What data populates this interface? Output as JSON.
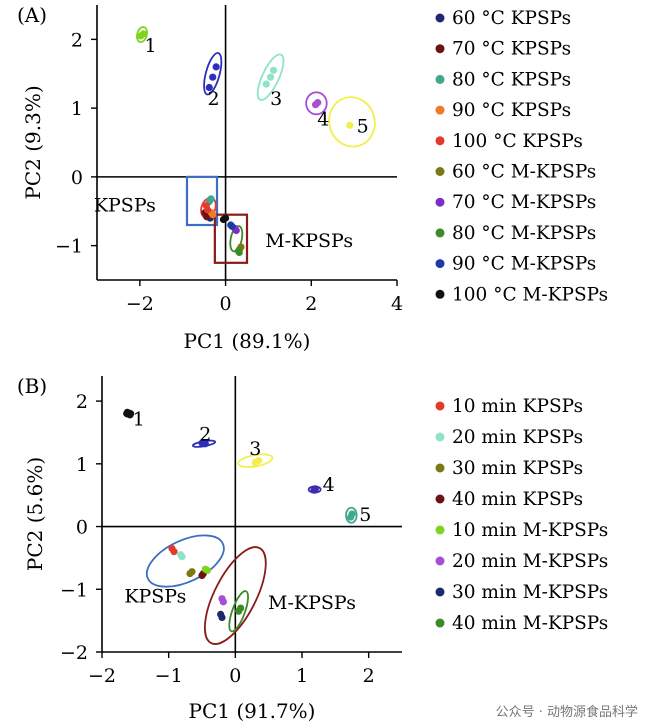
{
  "watermark": "公众号 · 动物源食品科学",
  "chart_data": [
    {
      "type": "scatter",
      "panel_label": "(A)",
      "xlabel": "PC1 (89.1%)",
      "ylabel": "PC2 (9.3%)",
      "xlim": [
        -3,
        4
      ],
      "ylim": [
        -1.5,
        2.5
      ],
      "xticks": [
        "−2",
        "0",
        "2",
        "4"
      ],
      "yticks": [
        "−1",
        "0",
        "1",
        "2"
      ],
      "xtick_values": [
        -2,
        0,
        2,
        4
      ],
      "ytick_values": [
        -1,
        0,
        1,
        2
      ],
      "grid": false,
      "legend_position": "right",
      "series": [
        {
          "name": "60 °C KPSPs",
          "color": "#1f2a6e",
          "points": [
            [
              -0.36,
              -0.6
            ],
            [
              -0.42,
              -0.55
            ]
          ]
        },
        {
          "name": "70 °C KPSPs",
          "color": "#6b1212",
          "points": [
            [
              -0.48,
              -0.52
            ],
            [
              -0.44,
              -0.58
            ]
          ]
        },
        {
          "name": "80 °C KPSPs",
          "color": "#3fa88f",
          "points": [
            [
              -0.38,
              -0.36
            ],
            [
              -0.34,
              -0.32
            ]
          ]
        },
        {
          "name": "90 °C KPSPs",
          "color": "#f07a2a",
          "points": [
            [
              -0.33,
              -0.52
            ],
            [
              -0.3,
              -0.55
            ]
          ]
        },
        {
          "name": "100 °C KPSPs",
          "color": "#e33a2c",
          "points": [
            [
              -0.42,
              -0.48
            ],
            [
              -0.45,
              -0.42
            ]
          ]
        },
        {
          "name": "60 °C M-KPSPs",
          "color": "#7a7a12",
          "points": [
            [
              0.36,
              -1.02
            ],
            [
              0.33,
              -1.05
            ]
          ]
        },
        {
          "name": "70 °C M-KPSPs",
          "color": "#7b2fc7",
          "points": [
            [
              0.25,
              -0.78
            ],
            [
              0.22,
              -0.75
            ]
          ]
        },
        {
          "name": "80 °C M-KPSPs",
          "color": "#3d8a2a",
          "points": [
            [
              0.32,
              -1.1
            ],
            [
              0.3,
              -1.08
            ]
          ]
        },
        {
          "name": "90 °C M-KPSPs",
          "color": "#1f3aa8",
          "points": [
            [
              0.15,
              -0.72
            ],
            [
              0.12,
              -0.7
            ]
          ]
        },
        {
          "name": "100 °C M-KPSPs",
          "color": "#111111",
          "points": [
            [
              -0.05,
              -0.62
            ],
            [
              0.0,
              -0.6
            ]
          ]
        },
        {
          "name": "",
          "color": "#7ed321",
          "points": [
            [
              -1.92,
              2.08
            ],
            [
              -1.98,
              2.05
            ]
          ]
        },
        {
          "name": "",
          "color": "#2d2fb8",
          "points": [
            [
              -0.3,
              1.45
            ],
            [
              -0.22,
              1.6
            ],
            [
              -0.38,
              1.3
            ]
          ]
        },
        {
          "name": "",
          "color": "#8fe3c8",
          "points": [
            [
              1.05,
              1.45
            ],
            [
              0.95,
              1.35
            ],
            [
              1.12,
              1.55
            ]
          ]
        },
        {
          "name": "",
          "color": "#a64fd4",
          "points": [
            [
              2.15,
              1.08
            ],
            [
              2.1,
              1.05
            ]
          ]
        },
        {
          "name": "",
          "color": "#f2ef4a",
          "points": [
            [
              2.9,
              0.75
            ]
          ]
        }
      ],
      "ellipses": [
        {
          "cx": -1.95,
          "cy": 2.07,
          "rx": 0.18,
          "ry": 0.07,
          "angle": -75,
          "color": "#7ed321"
        },
        {
          "cx": -0.3,
          "cy": 1.5,
          "rx": 0.5,
          "ry": 0.1,
          "angle": -75,
          "color": "#2d2fb8"
        },
        {
          "cx": 1.05,
          "cy": 1.45,
          "rx": 0.58,
          "ry": 0.12,
          "angle": -65,
          "color": "#8fe3c8"
        },
        {
          "cx": 2.12,
          "cy": 1.07,
          "rx": 0.24,
          "ry": 0.16,
          "angle": 0,
          "color": "#a64fd4"
        },
        {
          "cx": 2.95,
          "cy": 0.8,
          "rx": 0.58,
          "ry": 0.33,
          "angle": 75,
          "color": "#f2ef4a"
        },
        {
          "cx": -0.4,
          "cy": -0.45,
          "rx": 0.24,
          "ry": 0.1,
          "angle": -70,
          "color": "#e33a2c"
        },
        {
          "cx": 0.25,
          "cy": -0.9,
          "rx": 0.3,
          "ry": 0.08,
          "angle": -78,
          "color": "#3d8a2a"
        }
      ],
      "boxes": [
        {
          "x0": -0.9,
          "y0": -0.7,
          "x1": -0.2,
          "y1": 0.0,
          "color": "#3a6fc4"
        },
        {
          "x0": -0.25,
          "y0": -1.25,
          "x1": 0.5,
          "y1": -0.55,
          "color": "#8b1a1a"
        }
      ],
      "point_labels": [
        {
          "text": "1",
          "x": -1.75,
          "y": 1.92
        },
        {
          "text": "2",
          "x": -0.28,
          "y": 1.15
        },
        {
          "text": "3",
          "x": 1.18,
          "y": 1.15
        },
        {
          "text": "4",
          "x": 2.28,
          "y": 0.85
        },
        {
          "text": "5",
          "x": 3.2,
          "y": 0.75
        }
      ],
      "annotations": [
        {
          "text": "KPSPs",
          "x": -2.35,
          "y": -0.4
        },
        {
          "text": "M-KPSPs",
          "x": 1.95,
          "y": -0.92
        }
      ]
    },
    {
      "type": "scatter",
      "panel_label": "(B)",
      "xlabel": "PC1 (91.7%)",
      "ylabel": "PC2 (5.6%)",
      "xlim": [
        -2,
        2.5
      ],
      "ylim": [
        -2,
        2.4
      ],
      "xticks": [
        "−2",
        "−1",
        "0",
        "1",
        "2"
      ],
      "yticks": [
        "−2",
        "−1",
        "0",
        "1",
        "2"
      ],
      "xtick_values": [
        -2,
        -1,
        0,
        1,
        2
      ],
      "ytick_values": [
        -2,
        -1,
        0,
        1,
        2
      ],
      "grid": false,
      "legend_position": "right",
      "series": [
        {
          "name": "10 min KPSPs",
          "color": "#e33a2c",
          "points": [
            [
              -0.95,
              -0.35
            ],
            [
              -0.92,
              -0.4
            ]
          ]
        },
        {
          "name": "20 min KPSPs",
          "color": "#8fe3c8",
          "points": [
            [
              -0.82,
              -0.45
            ],
            [
              -0.8,
              -0.48
            ]
          ]
        },
        {
          "name": "30 min KPSPs",
          "color": "#7a7a12",
          "points": [
            [
              -0.68,
              -0.75
            ],
            [
              -0.65,
              -0.72
            ]
          ]
        },
        {
          "name": "40 min KPSPs",
          "color": "#6b1212",
          "points": [
            [
              -0.48,
              -0.75
            ],
            [
              -0.5,
              -0.78
            ]
          ]
        },
        {
          "name": "10 min M-KPSPs",
          "color": "#7ed321",
          "points": [
            [
              -0.45,
              -0.68
            ],
            [
              -0.42,
              -0.7
            ]
          ]
        },
        {
          "name": "20 min M-KPSPs",
          "color": "#a64fd4",
          "points": [
            [
              -0.2,
              -1.15
            ],
            [
              -0.18,
              -1.2
            ]
          ]
        },
        {
          "name": "30 min M-KPSPs",
          "color": "#1f2a6e",
          "points": [
            [
              -0.22,
              -1.4
            ],
            [
              -0.2,
              -1.45
            ]
          ]
        },
        {
          "name": "40 min M-KPSPs",
          "color": "#3d8a2a",
          "points": [
            [
              0.05,
              -1.35
            ],
            [
              0.08,
              -1.3
            ]
          ]
        },
        {
          "name": "",
          "color": "#111111",
          "points": [
            [
              -1.62,
              1.82
            ],
            [
              -1.58,
              1.78
            ]
          ]
        },
        {
          "name": "",
          "color": "#2d2fb8",
          "points": [
            [
              -0.45,
              1.32
            ],
            [
              -0.5,
              1.33
            ]
          ]
        },
        {
          "name": "",
          "color": "#f2ef4a",
          "points": [
            [
              0.3,
              1.02
            ],
            [
              0.35,
              1.05
            ]
          ]
        },
        {
          "name": "",
          "color": "#3b2cb0",
          "points": [
            [
              1.2,
              0.6
            ],
            [
              1.18,
              0.58
            ]
          ]
        },
        {
          "name": "",
          "color": "#3fa88f",
          "points": [
            [
              1.75,
              0.2
            ],
            [
              1.73,
              0.15
            ]
          ]
        }
      ],
      "ellipses": [
        {
          "cx": -1.6,
          "cy": 1.8,
          "rx": 0.07,
          "ry": 0.05,
          "angle": 0,
          "color": "#111111"
        },
        {
          "cx": -0.47,
          "cy": 1.32,
          "rx": 0.17,
          "ry": 0.04,
          "angle": -10,
          "color": "#2d2fb8"
        },
        {
          "cx": 0.3,
          "cy": 1.05,
          "rx": 0.26,
          "ry": 0.09,
          "angle": -10,
          "color": "#f2ef4a"
        },
        {
          "cx": 1.19,
          "cy": 0.59,
          "rx": 0.09,
          "ry": 0.05,
          "angle": 0,
          "color": "#3b2cb0"
        },
        {
          "cx": 1.74,
          "cy": 0.18,
          "rx": 0.08,
          "ry": 0.12,
          "angle": 0,
          "color": "#3fa88f"
        },
        {
          "cx": -0.75,
          "cy": -0.55,
          "rx": 0.62,
          "ry": 0.33,
          "angle": -25,
          "color": "#3a6fc4"
        },
        {
          "cx": 0.0,
          "cy": -1.1,
          "rx": 0.8,
          "ry": 0.33,
          "angle": -63,
          "color": "#8b1a1a"
        },
        {
          "cx": 0.05,
          "cy": -1.35,
          "rx": 0.32,
          "ry": 0.1,
          "angle": -70,
          "color": "#3d8a2a"
        }
      ],
      "point_labels": [
        {
          "text": "1",
          "x": -1.45,
          "y": 1.72
        },
        {
          "text": "2",
          "x": -0.45,
          "y": 1.48
        },
        {
          "text": "3",
          "x": 0.3,
          "y": 1.25
        },
        {
          "text": "4",
          "x": 1.4,
          "y": 0.68
        },
        {
          "text": "5",
          "x": 1.95,
          "y": 0.2
        }
      ],
      "annotations": [
        {
          "text": "KPSPs",
          "x": -1.2,
          "y": -1.1
        },
        {
          "text": "M-KPSPs",
          "x": 1.15,
          "y": -1.2
        }
      ]
    }
  ]
}
